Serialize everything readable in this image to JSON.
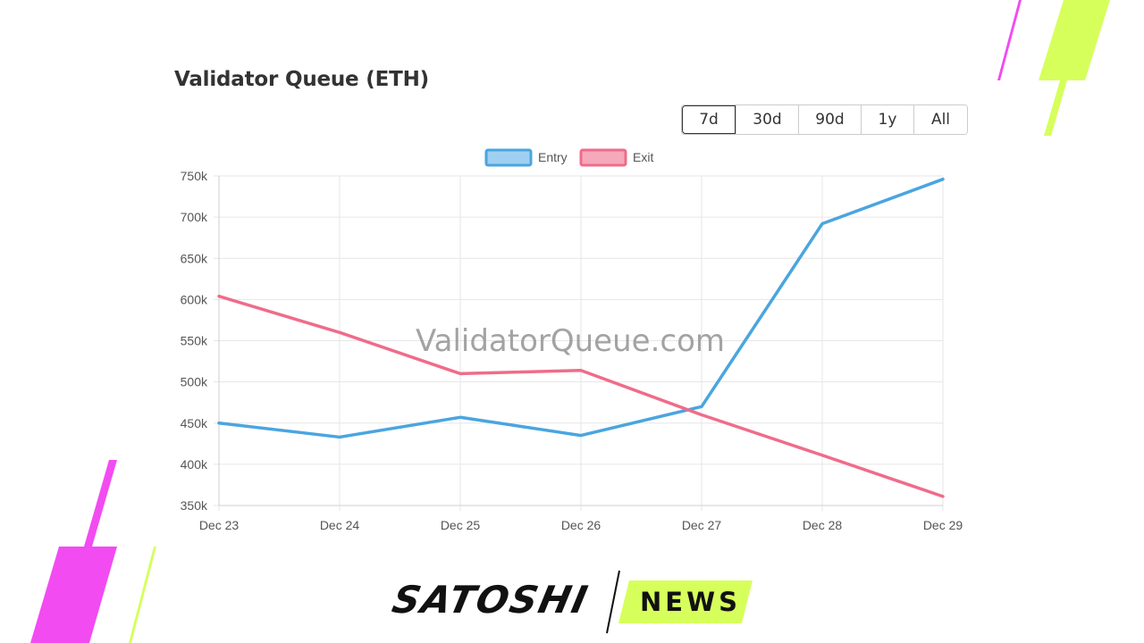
{
  "chart_data": {
    "type": "line",
    "title": "Validator Queue (ETH)",
    "categories": [
      "Dec 23",
      "Dec 24",
      "Dec 25",
      "Dec 26",
      "Dec 27",
      "Dec 28",
      "Dec 29"
    ],
    "series": [
      {
        "name": "Entry",
        "color": "#4aa5df",
        "values": [
          450000,
          433000,
          457000,
          435000,
          470000,
          692000,
          746000
        ]
      },
      {
        "name": "Exit",
        "color": "#ef6c8a",
        "values": [
          604000,
          560000,
          510000,
          514000,
          460000,
          411000,
          361000
        ]
      }
    ],
    "ylim": [
      350000,
      750000
    ],
    "yticks": [
      350000,
      400000,
      450000,
      500000,
      550000,
      600000,
      650000,
      700000,
      750000
    ],
    "ytick_labels": [
      "350k",
      "400k",
      "450k",
      "500k",
      "550k",
      "600k",
      "650k",
      "700k",
      "750k"
    ],
    "grid": true,
    "legend": "top-center",
    "watermark": "ValidatorQueue.com"
  },
  "range_buttons": [
    {
      "label": "7d",
      "active": true
    },
    {
      "label": "30d",
      "active": false
    },
    {
      "label": "90d",
      "active": false
    },
    {
      "label": "1y",
      "active": false
    },
    {
      "label": "All",
      "active": false
    }
  ],
  "branding": {
    "left": "SATOSHI",
    "right": "NEWS"
  },
  "colors": {
    "magenta": "#f24bf2",
    "lime": "#d6ff5c"
  }
}
